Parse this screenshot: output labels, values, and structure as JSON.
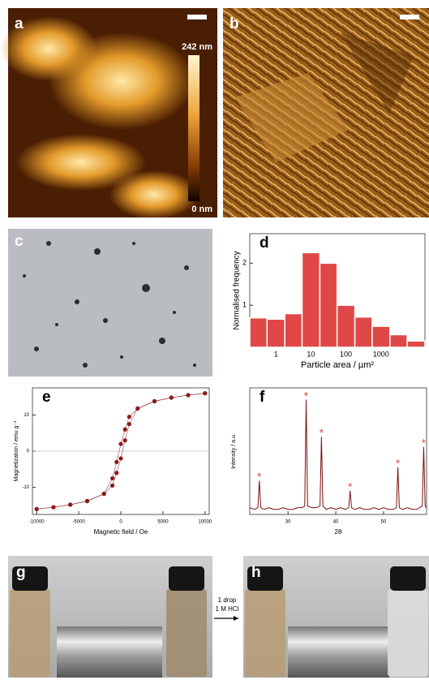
{
  "images": {
    "a": {
      "label": "a",
      "scale_max": "242 nm",
      "scale_min": "0 nm"
    },
    "b": {
      "label": "b"
    },
    "c": {
      "label": "c"
    },
    "g": {
      "label": "g"
    },
    "h": {
      "label": "h"
    },
    "arrow": {
      "line1": "1 drop",
      "line2": "1 M HCl"
    }
  },
  "chart_data": [
    {
      "type": "histogram",
      "panel_label": "d",
      "xlabel": "Particle area / µm²",
      "ylabel": "Normalised frequency",
      "bins": [
        0.18,
        0.56,
        1.8,
        5.6,
        18,
        56,
        180,
        560,
        1800,
        5600,
        18000
      ],
      "values": [
        0.7,
        0.67,
        0.8,
        2.25,
        2.0,
        1.0,
        0.72,
        0.5,
        0.3,
        0.15
      ],
      "color": "#e04848",
      "xscale": "log",
      "xlim": [
        0.18,
        18000
      ],
      "xticks": [
        1,
        10,
        100,
        1000
      ],
      "ylim": [
        0,
        2.7
      ],
      "yticks": [
        1,
        2
      ]
    },
    {
      "type": "scatter",
      "panel_label": "e",
      "xlabel": "Magnetic field / Oe",
      "ylabel": "Magnetization / emu g⁻¹",
      "x": [
        -10000,
        -8000,
        -6000,
        -4000,
        -2000,
        -1000,
        -500,
        0,
        500,
        1000,
        2000,
        4000,
        6000,
        8000,
        10000
      ],
      "series": [
        {
          "color": "#8b1a1a",
          "values": [
            -16,
            -15.5,
            -14.8,
            -13.8,
            -11.8,
            -9.5,
            -6,
            -2,
            3,
            7.5,
            11.8,
            13.8,
            14.8,
            15.5,
            16
          ]
        },
        {
          "color": "#8b1a1a",
          "values": [
            -16,
            -15.5,
            -14.8,
            -13.8,
            -11.8,
            -7.5,
            -3,
            2,
            6,
            9.5,
            11.8,
            13.8,
            14.8,
            15.5,
            16
          ]
        }
      ],
      "xlim": [
        -10500,
        10500
      ],
      "xticks": [
        -10000,
        -5000,
        0,
        5000,
        10000
      ],
      "ylim": [
        -17.5,
        17.5
      ],
      "yticks": [
        -10,
        0,
        10
      ]
    },
    {
      "type": "line",
      "panel_label": "f",
      "xlabel": "2θ",
      "ylabel": "Intensity / a.u.",
      "color": "#7a1010",
      "x": [
        22,
        23,
        23.7,
        24,
        24.3,
        25,
        26,
        27,
        28,
        29,
        30,
        31,
        32,
        33,
        33.5,
        33.8,
        34.1,
        35,
        36,
        36.7,
        37,
        37.3,
        38,
        39,
        40,
        41,
        42,
        42.7,
        43,
        43.3,
        44,
        45,
        46,
        47,
        48,
        49,
        50,
        51,
        52,
        52.7,
        53,
        53.3,
        54,
        55,
        56,
        57,
        58.1,
        58.4,
        58.7,
        59
      ],
      "values": [
        4,
        3,
        4,
        20,
        4,
        3,
        4,
        3,
        3,
        4,
        3,
        3,
        4,
        4,
        5,
        68,
        5,
        4,
        4,
        5,
        46,
        5,
        3,
        4,
        3,
        4,
        3,
        4,
        14,
        4,
        3,
        4,
        3,
        3,
        4,
        3,
        4,
        3,
        3,
        4,
        28,
        4,
        3,
        4,
        3,
        3,
        5,
        40,
        5,
        4
      ],
      "markers": [
        {
          "x": 24,
          "y": 20,
          "label": "*"
        },
        {
          "x": 33.8,
          "y": 68,
          "label": "*"
        },
        {
          "x": 37,
          "y": 46,
          "label": "*"
        },
        {
          "x": 43,
          "y": 14,
          "label": "*"
        },
        {
          "x": 53,
          "y": 28,
          "label": "*"
        },
        {
          "x": 58.4,
          "y": 40,
          "label": "*"
        }
      ],
      "marker_color": "#e04848",
      "xlim": [
        22,
        59
      ],
      "xticks": [
        30,
        40,
        50
      ],
      "ylim": [
        0,
        75
      ]
    }
  ]
}
